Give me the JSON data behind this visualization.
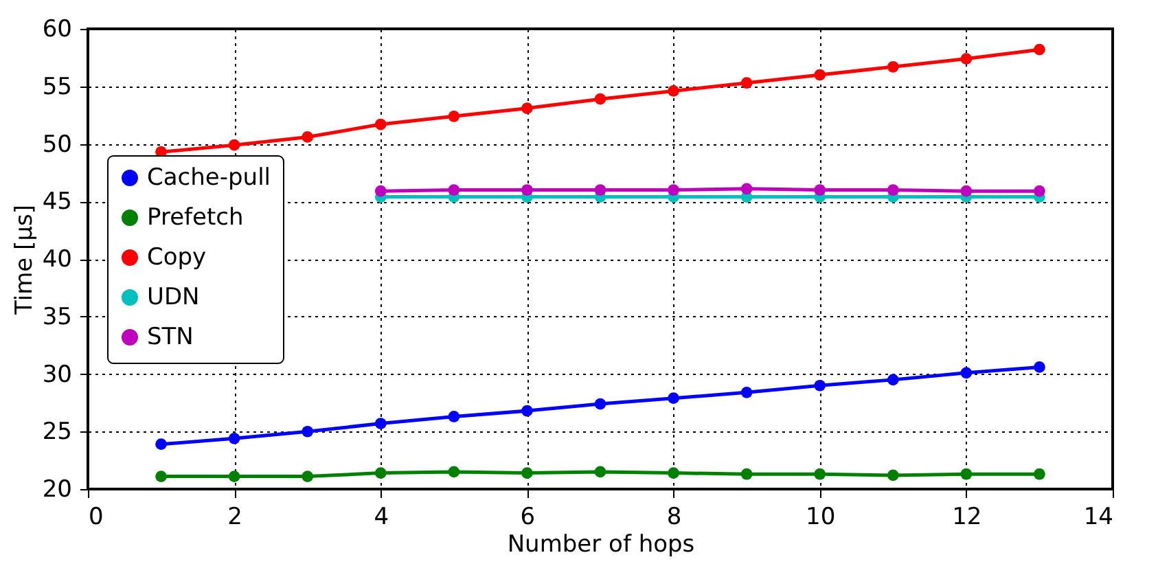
{
  "chart_data": {
    "type": "line",
    "xlabel": "Number of hops",
    "ylabel": "Time [μs]",
    "x": [
      1,
      2,
      3,
      4,
      5,
      6,
      7,
      8,
      9,
      10,
      11,
      12,
      13
    ],
    "series": [
      {
        "name": "Cache-pull",
        "color": "#0000ff",
        "values": [
          23.9,
          24.4,
          25.0,
          25.7,
          26.3,
          26.8,
          27.4,
          27.9,
          28.4,
          29.0,
          29.5,
          30.1,
          30.6
        ]
      },
      {
        "name": "Prefetch",
        "color": "#008000",
        "values": [
          21.1,
          21.1,
          21.1,
          21.4,
          21.5,
          21.4,
          21.5,
          21.4,
          21.3,
          21.3,
          21.2,
          21.3,
          21.3
        ]
      },
      {
        "name": "Copy",
        "color": "#ff0000",
        "values": [
          49.3,
          49.9,
          50.6,
          51.7,
          52.4,
          53.1,
          53.9,
          54.6,
          55.3,
          56.0,
          56.7,
          57.4,
          58.2
        ]
      },
      {
        "name": "UDN",
        "color": "#00bfbf",
        "values": [
          null,
          null,
          null,
          45.4,
          45.4,
          45.4,
          45.4,
          45.4,
          45.4,
          45.4,
          45.4,
          45.4,
          45.4
        ]
      },
      {
        "name": "STN",
        "color": "#bf00bf",
        "values": [
          null,
          null,
          null,
          45.9,
          46.0,
          46.0,
          46.0,
          46.0,
          46.1,
          46.0,
          46.0,
          45.9,
          45.9
        ]
      }
    ],
    "xlim": [
      0,
      14
    ],
    "xticks": [
      0,
      2,
      4,
      6,
      8,
      10,
      12,
      14
    ],
    "ylim": [
      20,
      60
    ],
    "yticks": [
      20,
      25,
      30,
      35,
      40,
      45,
      50,
      55,
      60
    ],
    "grid": true,
    "legend": "left",
    "marker": "circle",
    "line_style": "solid"
  }
}
